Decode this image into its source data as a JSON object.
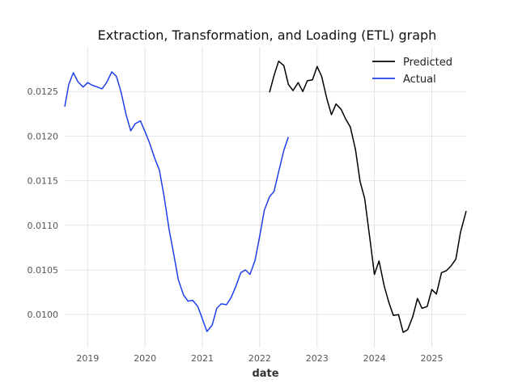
{
  "chart_data": {
    "type": "line",
    "title": "Extraction, Transformation, and Loading (ETL) graph",
    "xlabel": "date",
    "ylabel": "",
    "x_ticks": [
      "2019",
      "2020",
      "2021",
      "2022",
      "2023",
      "2024",
      "2025"
    ],
    "y_ticks": [
      "0.0100",
      "0.0105",
      "0.0110",
      "0.0115",
      "0.0120",
      "0.0125"
    ],
    "xlim": [
      2018.6,
      2025.6
    ],
    "ylim": [
      0.00963,
      0.013
    ],
    "grid": true,
    "legend_position": "top-right",
    "series": [
      {
        "name": "Predicted",
        "color": "#000000",
        "x": [
          2022.17,
          2022.25,
          2022.33,
          2022.42,
          2022.5,
          2022.58,
          2022.67,
          2022.75,
          2022.83,
          2022.92,
          2023.0,
          2023.08,
          2023.17,
          2023.25,
          2023.33,
          2023.42,
          2023.5,
          2023.58,
          2023.67,
          2023.75,
          2023.83,
          2023.92,
          2024.0,
          2024.08,
          2024.17,
          2024.25,
          2024.33,
          2024.42,
          2024.5,
          2024.58,
          2024.67,
          2024.75,
          2024.83,
          2024.92,
          2025.0,
          2025.08,
          2025.17,
          2025.25,
          2025.33,
          2025.42,
          2025.5,
          2025.6
        ],
        "y": [
          0.01249,
          0.01268,
          0.01284,
          0.01279,
          0.01258,
          0.01251,
          0.0126,
          0.0125,
          0.01262,
          0.01263,
          0.01278,
          0.01267,
          0.01242,
          0.01224,
          0.01236,
          0.0123,
          0.01219,
          0.0121,
          0.01185,
          0.01149,
          0.0113,
          0.01085,
          0.01045,
          0.0106,
          0.01032,
          0.01014,
          0.00999,
          0.01,
          0.0098,
          0.00983,
          0.00998,
          0.01018,
          0.01007,
          0.01009,
          0.01028,
          0.01023,
          0.01047,
          0.01049,
          0.01054,
          0.01062,
          0.01092,
          0.01116
        ]
      },
      {
        "name": "Actual",
        "color": "#1f3fe8",
        "x": [
          2018.6,
          2018.67,
          2018.75,
          2018.83,
          2018.92,
          2019.0,
          2019.08,
          2019.17,
          2019.25,
          2019.33,
          2019.42,
          2019.5,
          2019.58,
          2019.67,
          2019.75,
          2019.83,
          2019.92,
          2020.0,
          2020.08,
          2020.17,
          2020.25,
          2020.33,
          2020.42,
          2020.5,
          2020.58,
          2020.67,
          2020.75,
          2020.83,
          2020.92,
          2021.0,
          2021.08,
          2021.17,
          2021.25,
          2021.33,
          2021.42,
          2021.5,
          2021.58,
          2021.67,
          2021.75,
          2021.83,
          2021.92,
          2022.0,
          2022.08,
          2022.17,
          2022.25,
          2022.33,
          2022.42,
          2022.5
        ],
        "y": [
          0.01233,
          0.01258,
          0.01271,
          0.01261,
          0.01255,
          0.0126,
          0.01257,
          0.01255,
          0.01253,
          0.0126,
          0.01272,
          0.01267,
          0.0125,
          0.01224,
          0.01206,
          0.01214,
          0.01217,
          0.01205,
          0.01192,
          0.01175,
          0.01162,
          0.01133,
          0.01095,
          0.01068,
          0.01039,
          0.01022,
          0.01015,
          0.01016,
          0.01009,
          0.00995,
          0.00981,
          0.00988,
          0.01007,
          0.01012,
          0.01011,
          0.01019,
          0.01031,
          0.01047,
          0.0105,
          0.01045,
          0.01061,
          0.01088,
          0.01117,
          0.01132,
          0.01138,
          0.0116,
          0.01184,
          0.01199
        ]
      }
    ]
  }
}
